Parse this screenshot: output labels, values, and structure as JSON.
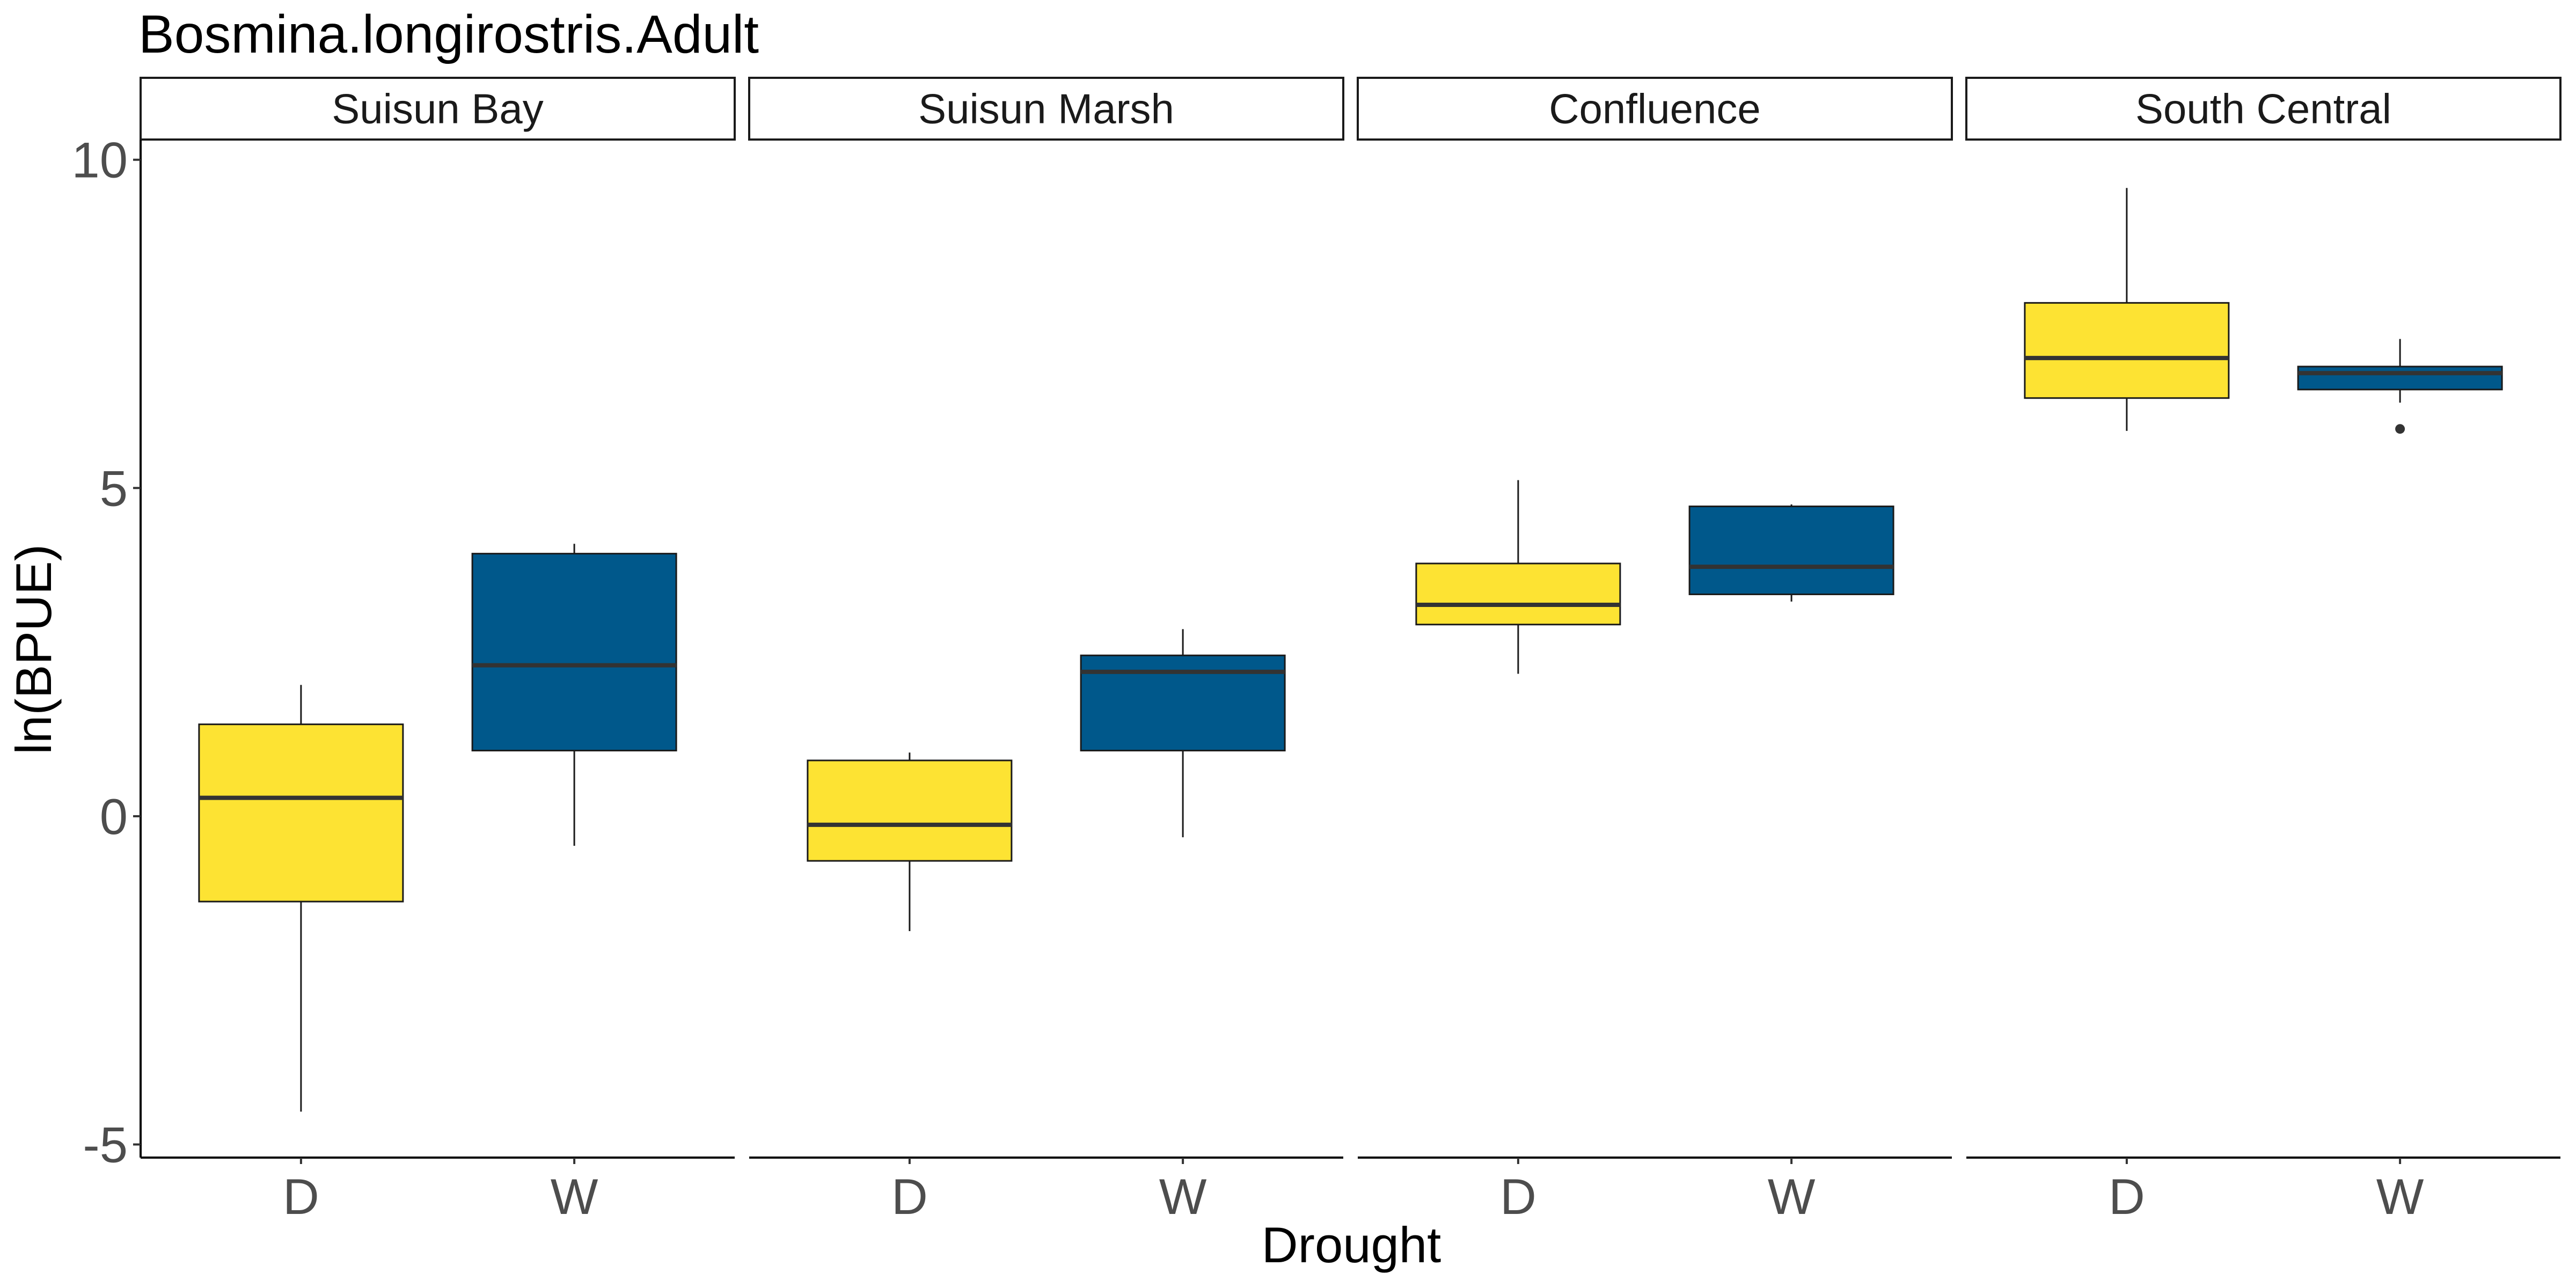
{
  "chart_data": {
    "type": "boxplot",
    "title": "Bosmina.longirostris.Adult",
    "xlabel": "Drought",
    "ylabel": "ln(BPUE)",
    "ylim": [
      -5.2,
      10.3
    ],
    "yticks": [
      -5,
      0,
      5,
      10
    ],
    "yticklabels": [
      "-5",
      "0",
      "5",
      "10"
    ],
    "categories": [
      "D",
      "W"
    ],
    "colors": {
      "D": "#FDE333",
      "W": "#00588B"
    },
    "grid": false,
    "facets": [
      {
        "name": "Suisun Bay",
        "boxes": [
          {
            "category": "D",
            "whisker_low": -4.5,
            "q1": -1.3,
            "median": 0.28,
            "q3": 1.4,
            "whisker_high": 2.0,
            "outliers": []
          },
          {
            "category": "W",
            "whisker_low": -0.45,
            "q1": 1.0,
            "median": 2.3,
            "q3": 4.0,
            "whisker_high": 4.15,
            "outliers": []
          }
        ]
      },
      {
        "name": "Suisun Marsh",
        "boxes": [
          {
            "category": "D",
            "whisker_low": -1.75,
            "q1": -0.68,
            "median": -0.13,
            "q3": 0.85,
            "whisker_high": 0.97,
            "outliers": []
          },
          {
            "category": "W",
            "whisker_low": -0.32,
            "q1": 1.0,
            "median": 2.2,
            "q3": 2.45,
            "whisker_high": 2.85,
            "outliers": []
          }
        ]
      },
      {
        "name": "Confluence",
        "boxes": [
          {
            "category": "D",
            "whisker_low": 2.17,
            "q1": 2.92,
            "median": 3.22,
            "q3": 3.85,
            "whisker_high": 5.12,
            "outliers": []
          },
          {
            "category": "W",
            "whisker_low": 3.27,
            "q1": 3.38,
            "median": 3.8,
            "q3": 4.72,
            "whisker_high": 4.75,
            "outliers": []
          }
        ]
      },
      {
        "name": "South Central",
        "boxes": [
          {
            "category": "D",
            "whisker_low": 5.87,
            "q1": 6.37,
            "median": 6.98,
            "q3": 7.82,
            "whisker_high": 9.57,
            "outliers": []
          },
          {
            "category": "W",
            "whisker_low": 6.3,
            "q1": 6.5,
            "median": 6.75,
            "q3": 6.85,
            "whisker_high": 7.27,
            "outliers": [
              5.9
            ]
          }
        ]
      }
    ]
  }
}
